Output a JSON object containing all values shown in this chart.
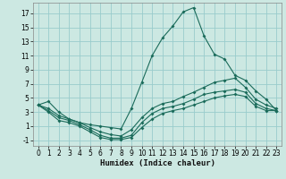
{
  "xlabel": "Humidex (Indice chaleur)",
  "bg_color": "#cce8e2",
  "grid_color": "#99cccc",
  "line_color": "#1a6b5a",
  "xlim_min": -0.5,
  "xlim_max": 23.5,
  "ylim_min": -1.8,
  "ylim_max": 18.5,
  "yticks": [
    -1,
    1,
    3,
    5,
    7,
    9,
    11,
    13,
    15,
    17
  ],
  "xticks": [
    0,
    1,
    2,
    3,
    4,
    5,
    6,
    7,
    8,
    9,
    10,
    11,
    12,
    13,
    14,
    15,
    16,
    17,
    18,
    19,
    20,
    21,
    22,
    23
  ],
  "line1_y": [
    4.0,
    4.5,
    3.0,
    2.0,
    1.5,
    1.2,
    1.0,
    0.8,
    0.6,
    3.5,
    7.2,
    11.0,
    13.5,
    15.2,
    17.2,
    17.8,
    13.8,
    11.2,
    10.5,
    8.2,
    7.5,
    6.0,
    4.8,
    3.2
  ],
  "line2_y": [
    4.0,
    3.5,
    2.5,
    2.0,
    1.5,
    0.8,
    0.2,
    -0.2,
    -0.4,
    0.5,
    2.2,
    3.5,
    4.2,
    4.5,
    5.2,
    5.8,
    6.5,
    7.2,
    7.5,
    7.8,
    6.5,
    4.8,
    4.0,
    3.5
  ],
  "line3_y": [
    4.0,
    3.2,
    2.2,
    1.8,
    1.2,
    0.5,
    -0.3,
    -0.7,
    -0.7,
    -0.3,
    1.5,
    2.8,
    3.5,
    3.8,
    4.2,
    4.8,
    5.5,
    5.8,
    6.0,
    6.2,
    5.8,
    4.2,
    3.5,
    3.2
  ],
  "line4_y": [
    4.0,
    3.0,
    1.8,
    1.5,
    1.0,
    0.2,
    -0.6,
    -0.9,
    -0.9,
    -0.6,
    0.8,
    2.0,
    2.8,
    3.2,
    3.5,
    4.0,
    4.5,
    5.0,
    5.3,
    5.5,
    5.2,
    3.8,
    3.2,
    3.2
  ],
  "tick_fontsize": 5.5,
  "label_fontsize": 6.5
}
